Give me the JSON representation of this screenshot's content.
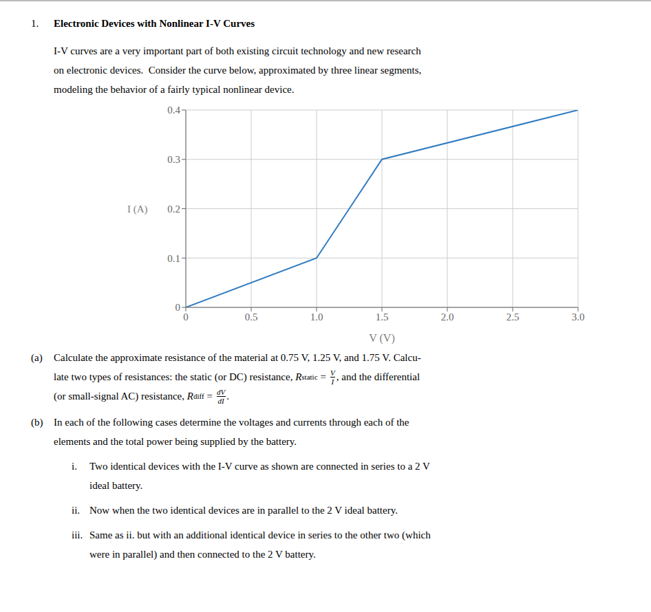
{
  "chart_data": {
    "type": "line",
    "title_number": "1.",
    "title": "Electronic Devices with Nonlinear I-V Curves",
    "intro": [
      "I-V curves are a very important part of both existing circuit technology and new research",
      "on electronic devices.  Consider the curve below, approximated by three linear segments,",
      "modeling the behavior of a fairly typical nonlinear device."
    ],
    "x": [
      0,
      1.0,
      1.5,
      3.0
    ],
    "values": [
      0,
      0.1,
      0.3,
      0.4
    ],
    "color": "#2f7bbf",
    "x_label": "V (V)",
    "y_label": "I (A)",
    "xlim": [
      0,
      3.0
    ],
    "ylim": [
      0,
      0.4
    ],
    "xticks": [
      0,
      0.5,
      {
        "value": 1.0,
        "label": "1.0"
      },
      1.5,
      {
        "value": 2.0,
        "label": "2.0"
      },
      2.5,
      {
        "value": 3.0,
        "label": "3.0"
      }
    ],
    "yticks": [
      0,
      0.1,
      0.2,
      0.3,
      0.4
    ],
    "grid": true,
    "parts": [
      {
        "label": "(a)",
        "lines": [
          [
            "Calculate the approximate resistance of the material at 0.75 V, 1.25 V, and 1.75 V. Calcu-"
          ],
          [
            "late two types of resistances: the static (or DC) resistance, ",
            {
              "base": "R",
              "sub": "static",
              "op": "=",
              "num": "V",
              "den": "I"
            },
            ", and the differential"
          ],
          [
            "(or small-signal AC) resistance, ",
            {
              "base": "R",
              "sub": "diff",
              "op": "=",
              "num": "dV",
              "den": "dI"
            },
            "."
          ]
        ],
        "items": []
      },
      {
        "label": "(b)",
        "lines": [
          [
            "In each of the following cases determine the voltages and currents through each of the"
          ],
          [
            "elements and the total power being supplied by the battery."
          ]
        ],
        "items": [
          {
            "label": "i.",
            "lines": [
              [
                "Two identical devices with the I-V curve as shown are connected in series to a 2 V"
              ],
              [
                "ideal battery."
              ]
            ]
          },
          {
            "label": "ii.",
            "lines": [
              [
                "Now when the two identical devices are in parallel to the 2 V ideal battery."
              ]
            ]
          },
          {
            "label": "iii.",
            "lines": [
              [
                "Same as ii. but with an additional identical device in series to the other two (which"
              ],
              [
                "were in parallel) and then connected to the 2 V battery."
              ]
            ]
          }
        ]
      }
    ]
  }
}
